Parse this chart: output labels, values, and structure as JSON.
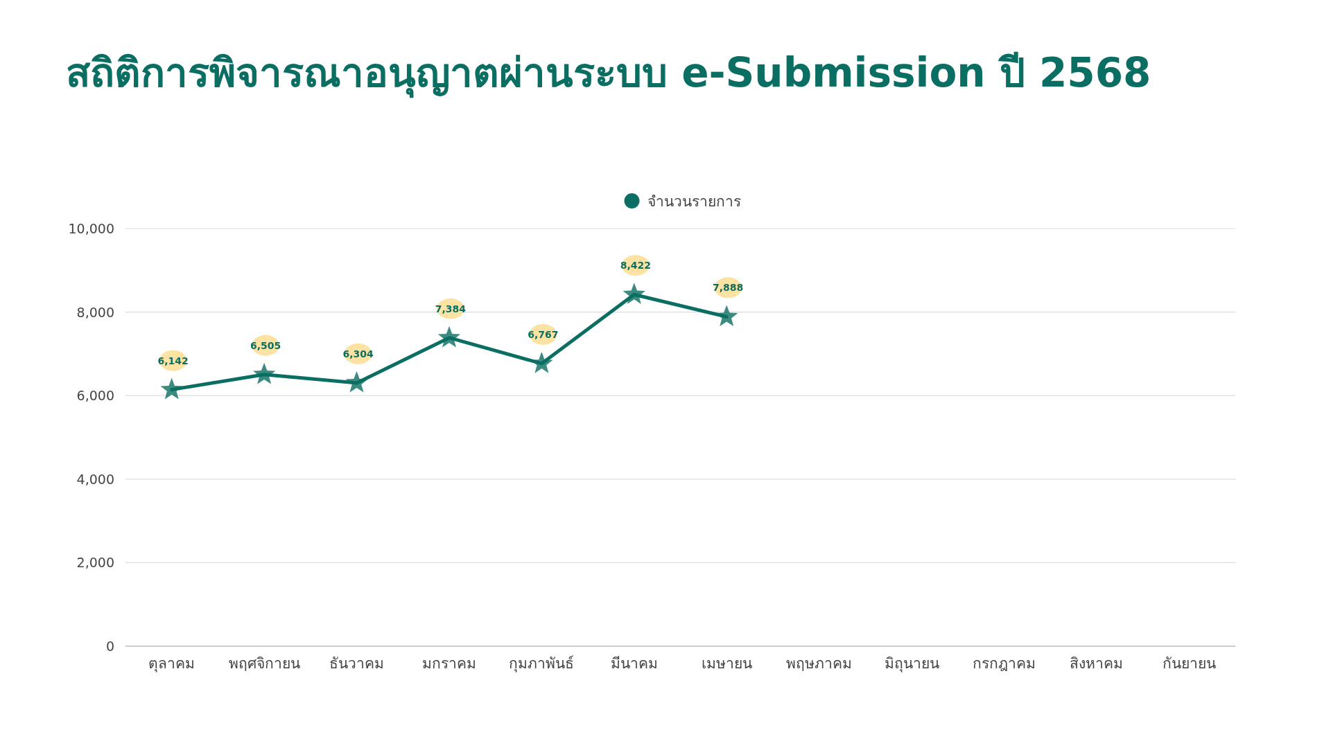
{
  "chart_data": {
    "type": "line",
    "title": "สถิติการพิจารณาอนุญาตผ่านระบบ e-Submission ปี 2568",
    "categories": [
      "ตุลาคม",
      "พฤศจิกายน",
      "ธันวาคม",
      "มกราคม",
      "กุมภาพันธ์",
      "มีนาคม",
      "เมษายน",
      "พฤษภาคม",
      "มิถุนายน",
      "กรกฎาคม",
      "สิงหาคม",
      "กันยายน"
    ],
    "series": [
      {
        "name": "จำนวนรายการ",
        "color": "#0b6e62",
        "values": [
          6142,
          6505,
          6304,
          7384,
          6767,
          8422,
          7888,
          null,
          null,
          null,
          null,
          null
        ],
        "value_labels": [
          "6,142",
          "6,505",
          "6,304",
          "7,384",
          "6,767",
          "8,422",
          "7,888",
          null,
          null,
          null,
          null,
          null
        ]
      }
    ],
    "ylim": [
      0,
      10000
    ],
    "yticks": [
      {
        "value": 0,
        "label": "0"
      },
      {
        "value": 2000,
        "label": "2,000"
      },
      {
        "value": 4000,
        "label": "4,000"
      },
      {
        "value": 6000,
        "label": "6,000"
      },
      {
        "value": 8000,
        "label": "8,000"
      },
      {
        "value": 10000,
        "label": "10,000"
      }
    ],
    "grid": "y",
    "legend": "top",
    "marker": "star",
    "line_style": "solid"
  }
}
